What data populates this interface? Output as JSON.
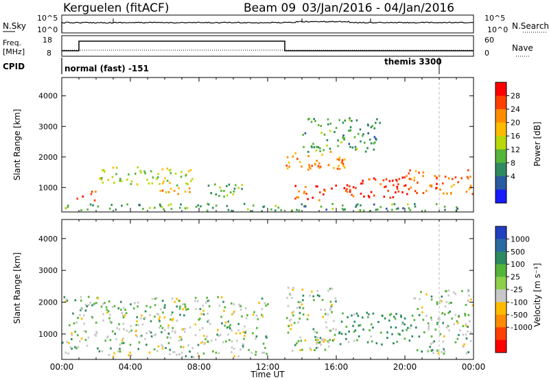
{
  "header": {
    "station": "Kerguelen (fitACF)",
    "beam": "Beam 09",
    "date_range": "03/Jan/2016 - 04/Jan/2016"
  },
  "top_panel": {
    "left_label": "N.Sky",
    "right_label": "N.Search",
    "left_ticks": [
      "10^5",
      "10^0"
    ],
    "right_ticks": [
      "10^5",
      "10^0"
    ]
  },
  "freq_panel": {
    "left_label_line1": "Freq.",
    "left_label_line2": "[MHz]",
    "right_label": "Nave",
    "left_ticks": [
      "18",
      "8"
    ],
    "right_ticks": [
      "60",
      "0"
    ]
  },
  "cpid_panel": {
    "label": "CPID",
    "mode1": "normal (fast) -151",
    "mode2": "themis 3300"
  },
  "power_panel": {
    "ylabel": "Slant Range [km]",
    "colorbar_label": "Power [dB]",
    "colorbar_ticks": [
      "28",
      "24",
      "20",
      "16",
      "12",
      "8",
      "4"
    ],
    "colorbar_colors": [
      "#ff0000",
      "#ff4000",
      "#ff8c00",
      "#ffbb00",
      "#b9d80c",
      "#55b43a",
      "#2e8a60",
      "#2a5aa0",
      "#1a1aff"
    ]
  },
  "velocity_panel": {
    "ylabel": "Slant Range [km]",
    "colorbar_label": "Velocity [m s⁻¹]",
    "colorbar_ticks": [
      "1000",
      "500",
      "100",
      "25",
      "-25",
      "-100",
      "-500",
      "-1000"
    ],
    "colorbar_colors": [
      "#2040c0",
      "#2a6aa0",
      "#2e8a60",
      "#55b43a",
      "#8ed04a",
      "#c8c8c8",
      "#ffbb00",
      "#ff8c00",
      "#ff4000",
      "#ff0000"
    ]
  },
  "xaxis": {
    "label": "Time UT",
    "ticks": [
      "00:00",
      "04:00",
      "08:00",
      "12:00",
      "16:00",
      "20:00",
      "00:00"
    ]
  },
  "chart_data": {
    "type": "heatmap",
    "title": "Kerguelen (fitACF) Beam 09 03/Jan/2016 - 04/Jan/2016",
    "xlabel": "Time UT",
    "ylabel": "Slant Range [km]",
    "xlim": [
      "00:00",
      "00:00"
    ],
    "ylim": [
      200,
      4600
    ],
    "yticks": [
      1000,
      2000,
      3000,
      4000
    ],
    "power_clim": [
      0,
      32
    ],
    "velocity_clim": [
      -1200,
      1200
    ],
    "freq_mhz": [
      {
        "from": "00:00",
        "to": "01:00",
        "value": 10.5
      },
      {
        "from": "01:00",
        "to": "13:00",
        "value": 15.5
      },
      {
        "from": "13:00",
        "to": "00:00",
        "value": 10.5
      }
    ],
    "nave_level": 17,
    "cpid": [
      {
        "from": "00:00",
        "to": "22:00",
        "name": "normal (fast) -151"
      },
      {
        "from": "22:00",
        "to": "00:00",
        "name": "themis 3300"
      }
    ],
    "power_regions": [
      {
        "t0": 0.8,
        "t1": 2.0,
        "r0": 600,
        "r1": 900,
        "db": 28
      },
      {
        "t0": 2.0,
        "t1": 7.7,
        "r0": 1100,
        "r1": 1700,
        "db": 16
      },
      {
        "t0": 5.5,
        "t1": 7.5,
        "r0": 800,
        "r1": 1200,
        "db": 22
      },
      {
        "t0": 0.0,
        "t1": 24.0,
        "r0": 250,
        "r1": 500,
        "db": 10
      },
      {
        "t0": 8.5,
        "t1": 11.0,
        "r0": 700,
        "r1": 1200,
        "db": 12
      },
      {
        "t0": 13.0,
        "t1": 16.5,
        "r0": 1500,
        "r1": 2200,
        "db": 24
      },
      {
        "t0": 13.5,
        "t1": 17.0,
        "r0": 600,
        "r1": 1100,
        "db": 28
      },
      {
        "t0": 16.5,
        "t1": 20.0,
        "r0": 700,
        "r1": 1400,
        "db": 30
      },
      {
        "t0": 20.0,
        "t1": 24.0,
        "r0": 800,
        "r1": 1600,
        "db": 26
      },
      {
        "t0": 14.0,
        "t1": 18.5,
        "r0": 2200,
        "r1": 3300,
        "db": 10
      }
    ],
    "velocity_regions": [
      {
        "t0": 0.0,
        "t1": 12.0,
        "r0": 300,
        "r1": 2200,
        "ms": 0
      },
      {
        "t0": 13.0,
        "t1": 16.0,
        "r0": 500,
        "r1": 2500,
        "ms": 0
      },
      {
        "t0": 16.0,
        "t1": 20.5,
        "r0": 700,
        "r1": 1700,
        "ms": 150
      },
      {
        "t0": 14.5,
        "t1": 16.0,
        "r0": 500,
        "r1": 900,
        "ms": -80
      },
      {
        "t0": 20.5,
        "t1": 24.0,
        "r0": 400,
        "r1": 2400,
        "ms": 0
      }
    ]
  }
}
